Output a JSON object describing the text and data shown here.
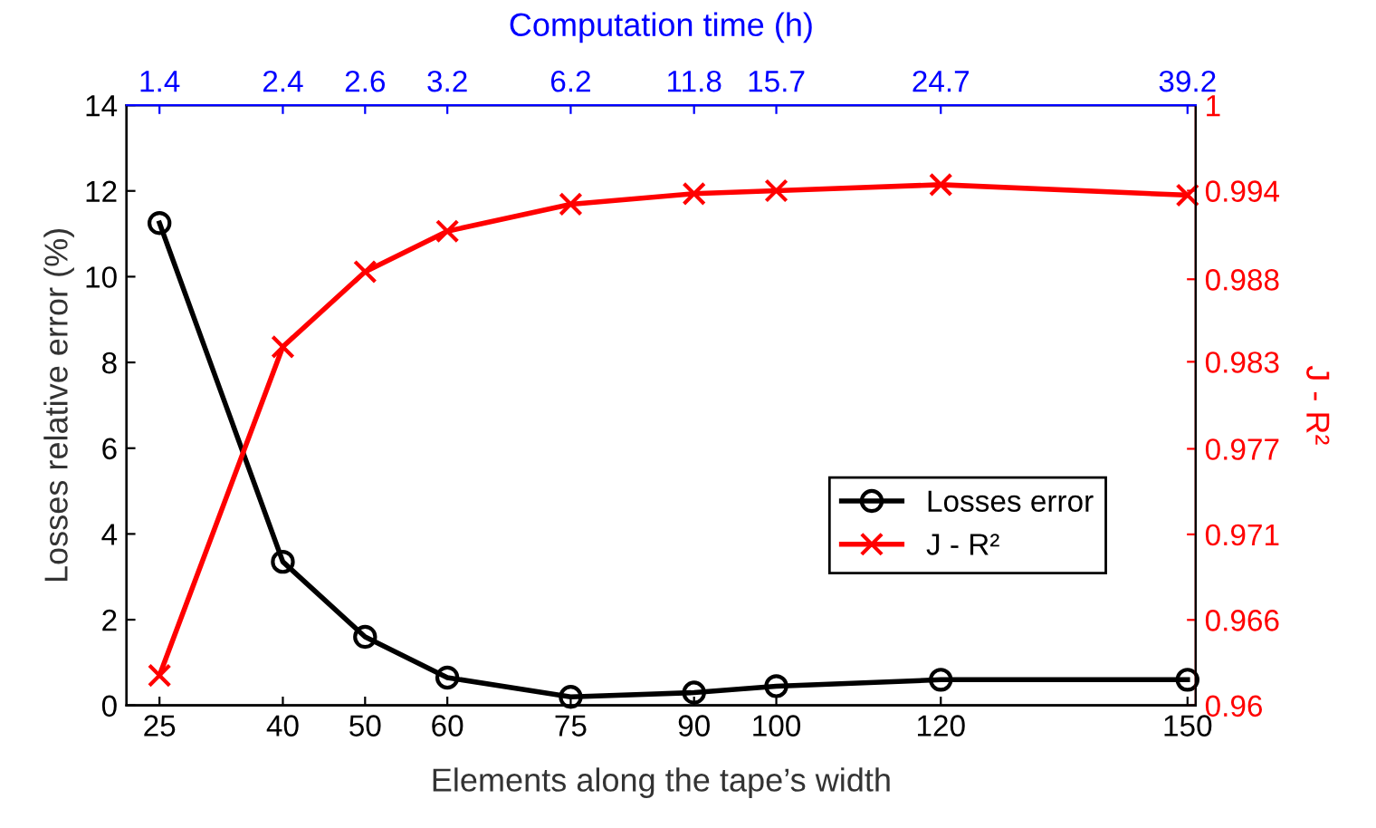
{
  "chart_data": {
    "type": "line",
    "xlabel": "Elements along the tape’s width",
    "ylabel": "Losses relative error (%)",
    "y2label": "J - R²",
    "x2label": "Computation time (h)",
    "x": [
      25,
      40,
      50,
      60,
      75,
      90,
      100,
      120,
      150
    ],
    "series": [
      {
        "name": "Losses error",
        "color": "#000000",
        "marker": "circle",
        "values": [
          11.25,
          3.35,
          1.6,
          0.65,
          0.2,
          0.3,
          0.45,
          0.6,
          0.6
        ]
      },
      {
        "name": "J - R²",
        "color": "#ff0000",
        "marker": "cross",
        "axis": "y2",
        "values": [
          0.962,
          0.9839,
          0.9889,
          0.9916,
          0.9934,
          0.9941,
          0.9943,
          0.9947,
          0.994
        ]
      }
    ],
    "xlim": [
      21,
      151
    ],
    "xticks": [
      25,
      40,
      50,
      60,
      75,
      90,
      100,
      120,
      150
    ],
    "annotations": [
      "1.4",
      "2.4",
      "2.6",
      "3.2",
      "6.2",
      "11.8",
      "15.7",
      "24.7",
      "39.2"
    ],
    "ylim": [
      0,
      14
    ],
    "yticks": [
      0,
      2,
      4,
      6,
      8,
      10,
      12,
      14
    ],
    "y2lim": [
      0.96,
      1
    ],
    "y2ticks": [
      {
        "value": 0.96,
        "label": "0.96"
      },
      {
        "value": 0.9657,
        "label": "0.966"
      },
      {
        "value": 0.9714,
        "label": "0.971"
      },
      {
        "value": 0.9771,
        "label": "0.977"
      },
      {
        "value": 0.9829,
        "label": "0.983"
      },
      {
        "value": 0.9884,
        "label": "0.988"
      },
      {
        "value": 0.9943,
        "label": "0.994"
      },
      {
        "value": 1,
        "label": "1"
      }
    ],
    "legend": "right",
    "grid": false,
    "line_style": "solid"
  }
}
